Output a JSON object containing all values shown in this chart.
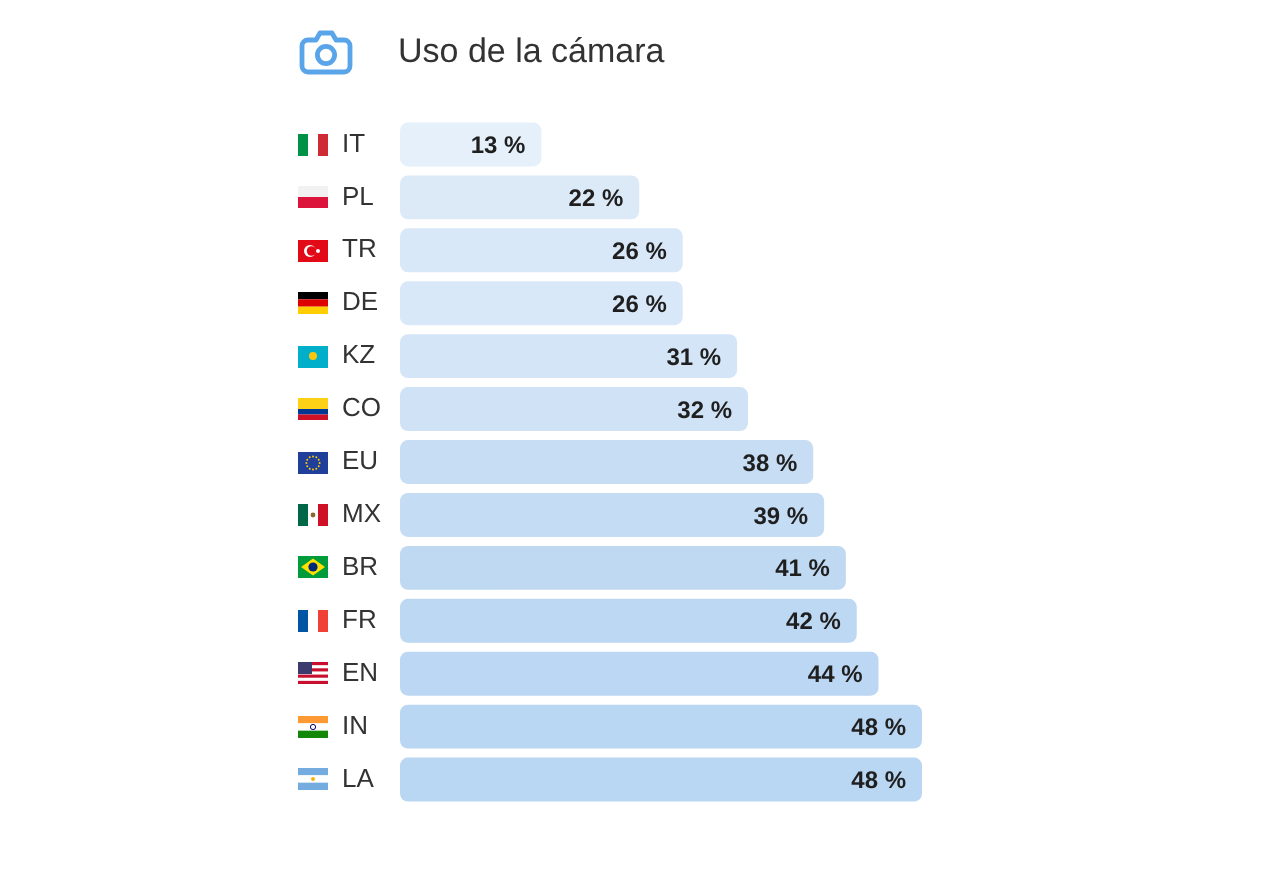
{
  "chart_data": {
    "type": "bar",
    "orientation": "horizontal",
    "title": "Uso de la cámara",
    "categories": [
      "IT",
      "PL",
      "TR",
      "DE",
      "KZ",
      "CO",
      "EU",
      "MX",
      "BR",
      "FR",
      "EN",
      "IN",
      "LA"
    ],
    "values": [
      13,
      22,
      26,
      26,
      31,
      32,
      38,
      39,
      41,
      42,
      44,
      48,
      48
    ],
    "value_labels": [
      "13 %",
      "22 %",
      "26 %",
      "26 %",
      "31 %",
      "32 %",
      "38 %",
      "39 %",
      "41 %",
      "42 %",
      "44 %",
      "48 %",
      "48 %"
    ],
    "colors": [
      "#e6f0fb",
      "#dceaf8",
      "#d9e8f8",
      "#d9e8f8",
      "#d4e5f7",
      "#cfe2f6",
      "#c6ddf4",
      "#c4dcf4",
      "#bfd9f3",
      "#bdd8f3",
      "#bbd7f3",
      "#b9d6f2",
      "#b9d6f2"
    ],
    "xlim": [
      0,
      48
    ],
    "tick_labels": "y"
  }
}
